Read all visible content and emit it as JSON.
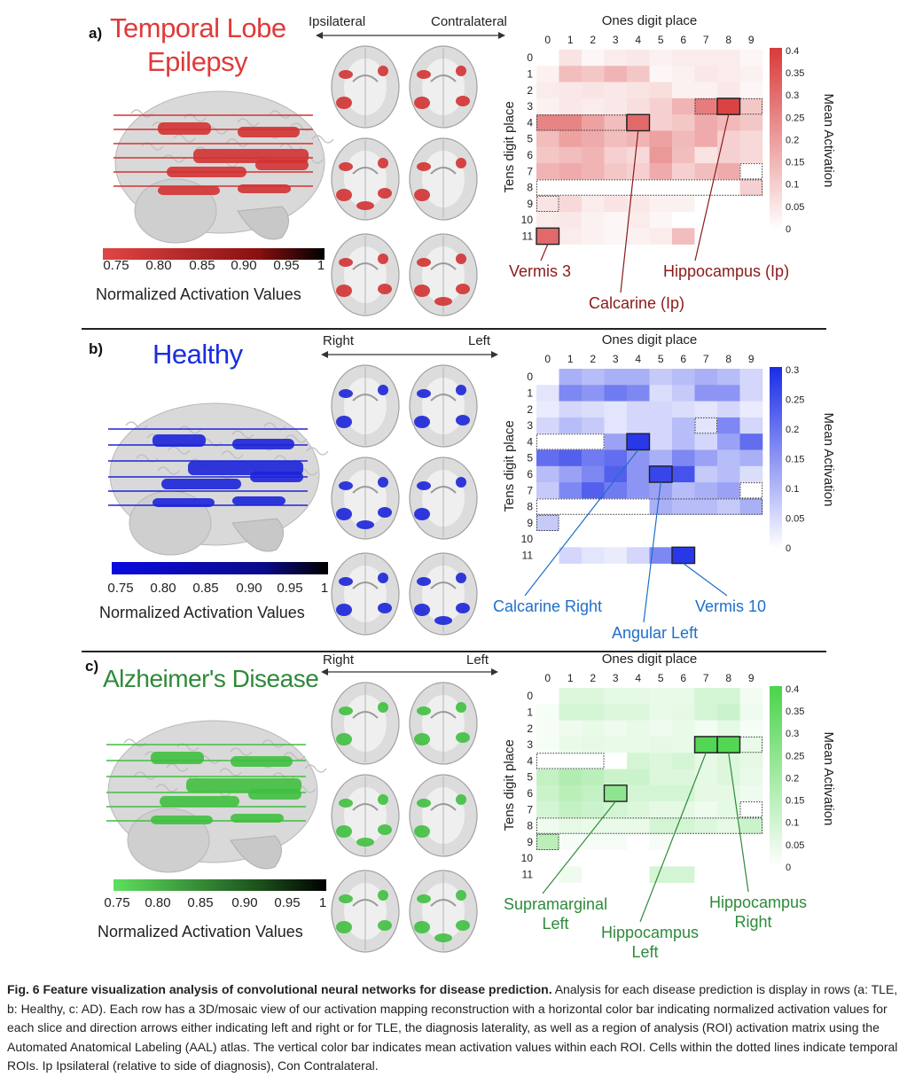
{
  "rows": [
    {
      "letter": "a)",
      "title_line1": "Temporal Lobe",
      "title_line2": "Epilepsy",
      "title_color": "#e03a3a",
      "dark_color": "#8a1010",
      "accent": "#d23232",
      "left_label": "Ipsilateral",
      "right_label": "Contralateral",
      "cbar_ticks": [
        "0.75",
        "0.80",
        "0.85",
        "0.90",
        "0.95",
        "1"
      ],
      "cbar_title": "Normalized Activation Values",
      "cbar_start": "#e24545",
      "heatmap": {
        "x_title": "Ones digit place",
        "y_title": "Tens digit place",
        "z_title": "Mean Activation",
        "x_ticks": [
          "0",
          "1",
          "2",
          "3",
          "4",
          "5",
          "6",
          "7",
          "8",
          "9"
        ],
        "y_ticks": [
          "0",
          "1",
          "2",
          "3",
          "4",
          "5",
          "6",
          "7",
          "8",
          "9",
          "10",
          "11"
        ],
        "z_ticks": [
          "0.4",
          "0.35",
          "0.3",
          "0.25",
          "0.2",
          "0.15",
          "0.1",
          "0.05",
          "0"
        ],
        "zmax": 0.42,
        "base": "#d93a3a",
        "values": [
          [
            0,
            0.06,
            0.02,
            0.04,
            0.05,
            0.03,
            0.04,
            0.04,
            0.04,
            0.02
          ],
          [
            0.03,
            0.14,
            0.12,
            0.16,
            0.12,
            0.02,
            0.03,
            0.05,
            0.04,
            0.03
          ],
          [
            0.04,
            0.05,
            0.06,
            0.05,
            0.06,
            0.07,
            0.03,
            0.03,
            0.05,
            0.02
          ],
          [
            0.03,
            0.05,
            0.04,
            0.05,
            0.07,
            0.1,
            0.16,
            0.28,
            0.4,
            0.12
          ],
          [
            0.26,
            0.26,
            0.2,
            0.14,
            0.32,
            0.1,
            0.12,
            0.18,
            0.15,
            0.12
          ],
          [
            0.14,
            0.2,
            0.18,
            0.14,
            0.16,
            0.2,
            0.15,
            0.18,
            0.1,
            0.08
          ],
          [
            0.12,
            0.14,
            0.16,
            0.1,
            0.08,
            0.22,
            0.14,
            0.06,
            0.1,
            0.08
          ],
          [
            0.16,
            0.18,
            0.16,
            0.12,
            0.1,
            0.18,
            0.1,
            0.14,
            0.18,
            0
          ],
          [
            0,
            0,
            0,
            0,
            0,
            0,
            0,
            0,
            0,
            0.1
          ],
          [
            0.06,
            0.08,
            0.04,
            0.06,
            0.05,
            0.03,
            0.03,
            0,
            0,
            0
          ],
          [
            0.04,
            0.05,
            0.03,
            0.02,
            0.04,
            0.02,
            0,
            0,
            0,
            0
          ],
          [
            0.32,
            0.04,
            0.03,
            0.02,
            0.03,
            0.04,
            0.14,
            0,
            0,
            0
          ]
        ],
        "outlined": [
          [
            0,
            11
          ],
          [
            4,
            4
          ],
          [
            8,
            3
          ]
        ],
        "dotted": [
          [
            0,
            4,
            4
          ],
          [
            0,
            9,
            1
          ],
          [
            7,
            3,
            3
          ],
          [
            9,
            7,
            1
          ],
          [
            0,
            8,
            10
          ]
        ],
        "callouts": [
          {
            "text": "Vermis 3",
            "cell": [
              0,
              11
            ]
          },
          {
            "text": "Calcarine (Ip)",
            "cell": [
              4,
              4
            ]
          },
          {
            "text": "Hippocampus (Ip)",
            "cell": [
              8,
              3
            ]
          }
        ]
      }
    },
    {
      "letter": "b)",
      "title_line1": "Healthy",
      "title_line2": "",
      "title_color": "#1a2ee0",
      "dark_color": "#0a0a8a",
      "accent": "#1c24d8",
      "left_label": "Right",
      "right_label": "Left",
      "cbar_ticks": [
        "0.75",
        "0.80",
        "0.85",
        "0.90",
        "0.95",
        "1"
      ],
      "cbar_title": "Normalized Activation Values",
      "cbar_start": "#0a0ae0",
      "heatmap": {
        "x_title": "Ones digit place",
        "y_title": "Tens digit place",
        "z_title": "Mean Activation",
        "x_ticks": [
          "0",
          "1",
          "2",
          "3",
          "4",
          "5",
          "6",
          "7",
          "8",
          "9"
        ],
        "y_ticks": [
          "0",
          "1",
          "2",
          "3",
          "4",
          "5",
          "6",
          "7",
          "8",
          "9",
          "10",
          "11"
        ],
        "z_ticks": [
          "0.3",
          "0.25",
          "0.2",
          "0.15",
          "0.1",
          "0.05",
          "0"
        ],
        "zmax": 0.32,
        "base": "#1a2be8",
        "values": [
          [
            0,
            0.12,
            0.1,
            0.12,
            0.12,
            0.08,
            0.1,
            0.12,
            0.1,
            0.06
          ],
          [
            0.04,
            0.18,
            0.16,
            0.2,
            0.18,
            0.05,
            0.08,
            0.16,
            0.16,
            0.06
          ],
          [
            0.03,
            0.06,
            0.05,
            0.04,
            0.06,
            0.06,
            0.05,
            0.04,
            0.06,
            0.03
          ],
          [
            0.06,
            0.1,
            0.08,
            0.04,
            0.06,
            0.06,
            0.1,
            0.04,
            0.18,
            0.06
          ],
          [
            0,
            0,
            0,
            0.14,
            0.3,
            0.06,
            0.1,
            0.06,
            0.14,
            0.22
          ],
          [
            0.22,
            0.24,
            0.2,
            0.22,
            0.16,
            0.12,
            0.18,
            0.14,
            0.1,
            0.12
          ],
          [
            0.1,
            0.14,
            0.18,
            0.24,
            0.16,
            0.28,
            0.26,
            0.08,
            0.1,
            0.05
          ],
          [
            0.08,
            0.18,
            0.24,
            0.2,
            0.16,
            0.14,
            0.1,
            0.12,
            0.14,
            0
          ],
          [
            0,
            0,
            0,
            0,
            0,
            0.12,
            0.1,
            0.1,
            0.08,
            0.12
          ],
          [
            0.08,
            0,
            0,
            0,
            0,
            0,
            0,
            0,
            0,
            0
          ],
          [
            0,
            0,
            0,
            0,
            0,
            0,
            0,
            0,
            0,
            0
          ],
          [
            0,
            0.06,
            0.04,
            0.03,
            0.06,
            0.18,
            0.3,
            0,
            0,
            0
          ]
        ],
        "outlined": [
          [
            4,
            4
          ],
          [
            5,
            6
          ],
          [
            6,
            11
          ]
        ],
        "dotted": [
          [
            0,
            4,
            3
          ],
          [
            7,
            3,
            1
          ],
          [
            9,
            7,
            1
          ],
          [
            0,
            8,
            10
          ],
          [
            0,
            9,
            1
          ]
        ],
        "callouts": [
          {
            "text": "Calcarine Right",
            "cell": [
              4,
              4
            ]
          },
          {
            "text": "Angular Left",
            "cell": [
              5,
              6
            ]
          },
          {
            "text": "Vermis 10",
            "cell": [
              6,
              11
            ]
          }
        ]
      }
    },
    {
      "letter": "c)",
      "title_line1": "Alzheimer's Disease",
      "title_line2": "",
      "title_color": "#2e8a3a",
      "dark_color": "#1a4d1a",
      "accent": "#3fbf3f",
      "left_label": "Right",
      "right_label": "Left",
      "cbar_ticks": [
        "0.75",
        "0.80",
        "0.85",
        "0.90",
        "0.95",
        "1"
      ],
      "cbar_title": "Normalized Activation Values",
      "cbar_start": "#5ee05e",
      "heatmap": {
        "x_title": "Ones digit place",
        "y_title": "Tens digit place",
        "z_title": "Mean Activation",
        "x_ticks": [
          "0",
          "1",
          "2",
          "3",
          "4",
          "5",
          "6",
          "7",
          "8",
          "9"
        ],
        "y_ticks": [
          "0",
          "1",
          "2",
          "3",
          "4",
          "5",
          "6",
          "7",
          "8",
          "9",
          "10",
          "11"
        ],
        "z_ticks": [
          "0.4",
          "0.35",
          "0.3",
          "0.25",
          "0.2",
          "0.15",
          "0.1",
          "0.05",
          "0"
        ],
        "zmax": 0.42,
        "base": "#4ad44a",
        "values": [
          [
            0,
            0.08,
            0.08,
            0.06,
            0.06,
            0.05,
            0.05,
            0.1,
            0.1,
            0.03
          ],
          [
            0.02,
            0.1,
            0.1,
            0.08,
            0.08,
            0.05,
            0.06,
            0.1,
            0.12,
            0.04
          ],
          [
            0.02,
            0.04,
            0.05,
            0.04,
            0.05,
            0.04,
            0.05,
            0.03,
            0.06,
            0.02
          ],
          [
            0.02,
            0.05,
            0.06,
            0.05,
            0.05,
            0.06,
            0.05,
            0.4,
            0.4,
            0.05
          ],
          [
            0,
            0,
            0,
            0,
            0.1,
            0.08,
            0.1,
            0.06,
            0.08,
            0.06
          ],
          [
            0.14,
            0.18,
            0.16,
            0.12,
            0.12,
            0.08,
            0.08,
            0.06,
            0.08,
            0.05
          ],
          [
            0.12,
            0.16,
            0.14,
            0.26,
            0.1,
            0.1,
            0.1,
            0.06,
            0.06,
            0.04
          ],
          [
            0.1,
            0.14,
            0.12,
            0.1,
            0.08,
            0.06,
            0.06,
            0.04,
            0.06,
            0
          ],
          [
            0.04,
            0.06,
            0.05,
            0.05,
            0.05,
            0.1,
            0.1,
            0.08,
            0.06,
            0.12
          ],
          [
            0.16,
            0.02,
            0.02,
            0.02,
            0,
            0.02,
            0,
            0,
            0,
            0
          ],
          [
            0,
            0,
            0,
            0,
            0,
            0,
            0,
            0,
            0,
            0
          ],
          [
            0,
            0.04,
            0,
            0,
            0,
            0.1,
            0.1,
            0,
            0,
            0
          ]
        ],
        "outlined": [
          [
            3,
            6
          ],
          [
            7,
            3
          ],
          [
            8,
            3
          ]
        ],
        "dotted": [
          [
            0,
            4,
            3
          ],
          [
            7,
            3,
            3
          ],
          [
            9,
            7,
            1
          ],
          [
            0,
            8,
            10
          ],
          [
            0,
            9,
            1
          ]
        ],
        "callouts": [
          {
            "text": "Supramarginal",
            "text2": "Left",
            "cell": [
              3,
              6
            ]
          },
          {
            "text": "Hippocampus",
            "text2": "Left",
            "cell": [
              7,
              3
            ]
          },
          {
            "text": "Hippocampus",
            "text2": "Right",
            "cell": [
              8,
              3
            ]
          }
        ]
      }
    }
  ],
  "caption": {
    "bold": "Fig. 6 Feature visualization analysis of convolutional neural networks for disease prediction.",
    "body": " Analysis for each disease prediction is display in rows (a: TLE, b: Healthy, c: AD). Each row has a 3D/mosaic view of our activation mapping reconstruction with a horizontal color bar indicating normalized activation values for each slice and direction arrows either indicating left and right or for TLE, the diagnosis laterality, as well as a region of analysis (ROI) activation matrix using the Automated Anatomical Labeling (AAL) atlas. The vertical color bar indicates mean activation values within each ROI. Cells within the dotted lines indicate temporal ROIs. Ip Ipsilateral (relative to side of diagnosis), Con Contralateral."
  }
}
